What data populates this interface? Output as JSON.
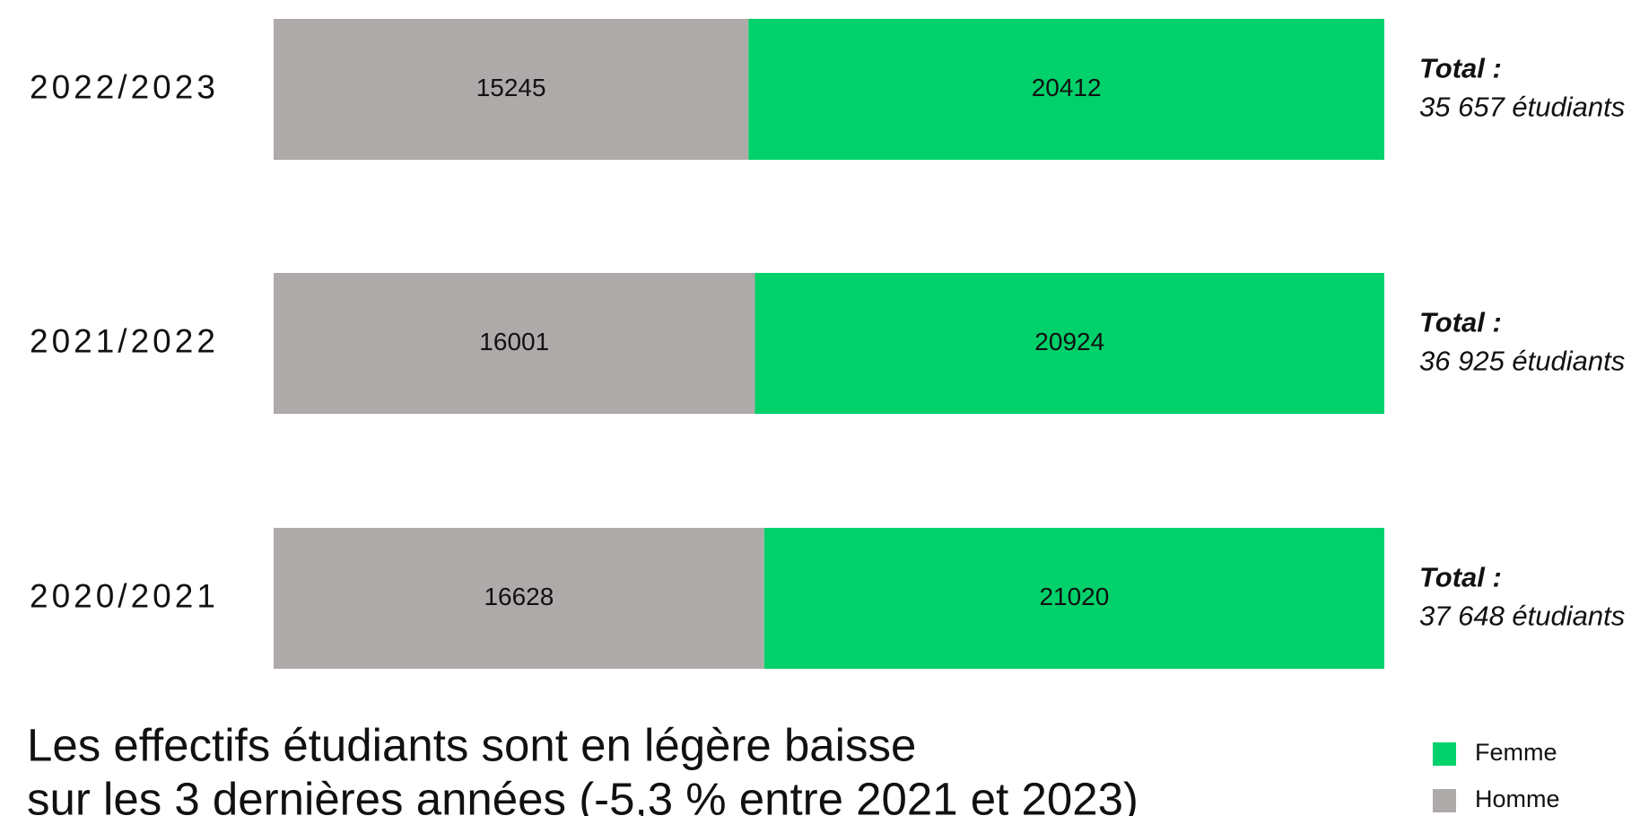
{
  "chart_data": {
    "type": "bar100h",
    "categories": [
      "2022/2023",
      "2021/2022",
      "2020/2021"
    ],
    "series": [
      {
        "name": "Homme",
        "color": "#aeaaa9",
        "values": [
          15245,
          16001,
          16628
        ]
      },
      {
        "name": "Femme",
        "color": "#00d16b",
        "values": [
          20412,
          20924,
          21020
        ]
      }
    ],
    "annotation_title": "Total :",
    "annotations": [
      "35 657 étudiants",
      "36 925 étudiants",
      "37 648 étudiants"
    ],
    "title_lines": [
      "Les effectifs étudiants sont en légère baisse",
      "sur les 3 dernières années (-5,3 % entre 2021 et 2023)"
    ],
    "legend_order": [
      1,
      0
    ]
  }
}
